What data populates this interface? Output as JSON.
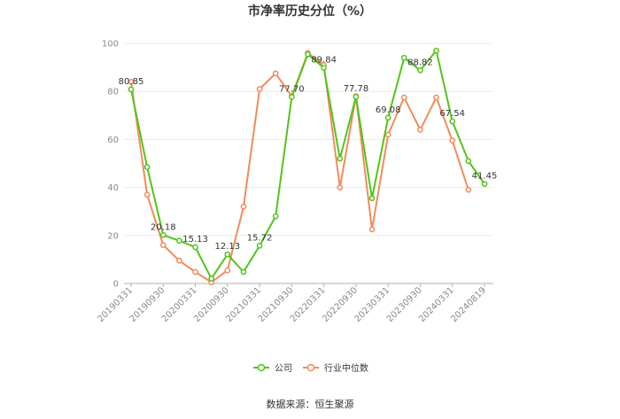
{
  "chart_data": {
    "type": "line",
    "title": "市净率历史分位（%）",
    "ylim": [
      0,
      100
    ],
    "yticks": [
      0,
      20,
      40,
      60,
      80,
      100
    ],
    "xtick_labels": [
      "20190331",
      "20190930",
      "20200331",
      "20200930",
      "20210331",
      "20210930",
      "20220331",
      "20220930",
      "20230331",
      "20230930",
      "20240331",
      "20240819"
    ],
    "x": [
      "20190331",
      "20190630",
      "20190930",
      "20191231",
      "20200331",
      "20200630",
      "20200930",
      "20201231",
      "20210331",
      "20210630",
      "20210930",
      "20211231",
      "20220331",
      "20220630",
      "20220930",
      "20221231",
      "20230331",
      "20230630",
      "20230930",
      "20231231",
      "20240331",
      "20240630",
      "20240819"
    ],
    "series": [
      {
        "name": "公司",
        "color": "#52c41a",
        "values": [
          80.85,
          48.5,
          20.18,
          17.8,
          15.13,
          2.0,
          12.13,
          4.8,
          15.72,
          28.0,
          77.7,
          95.5,
          89.84,
          52.0,
          77.78,
          35.5,
          69.08,
          94.0,
          88.82,
          97.0,
          67.54,
          51.0,
          41.45
        ]
      },
      {
        "name": "行业中位数",
        "color": "#f28b5b",
        "values": [
          84.0,
          37.0,
          16.0,
          9.5,
          4.8,
          0.5,
          5.5,
          32.0,
          81.0,
          87.5,
          78.0,
          96.0,
          91.0,
          40.0,
          78.0,
          22.5,
          62.0,
          77.5,
          64.0,
          77.5,
          59.5,
          39.0,
          null
        ]
      }
    ],
    "data_labels": [
      {
        "index": 0,
        "text": "80.85"
      },
      {
        "index": 2,
        "text": "20.18"
      },
      {
        "index": 4,
        "text": "15.13"
      },
      {
        "index": 6,
        "text": "12.13"
      },
      {
        "index": 8,
        "text": "15.72"
      },
      {
        "index": 10,
        "text": "77.70"
      },
      {
        "index": 12,
        "text": "89.84"
      },
      {
        "index": 14,
        "text": "77.78"
      },
      {
        "index": 16,
        "text": "69.08"
      },
      {
        "index": 18,
        "text": "88.82"
      },
      {
        "index": 20,
        "text": "67.54"
      },
      {
        "index": 22,
        "text": "41.45"
      }
    ],
    "grid": true,
    "legend_position": "bottom"
  },
  "source_text": "数据来源：恒生聚源"
}
